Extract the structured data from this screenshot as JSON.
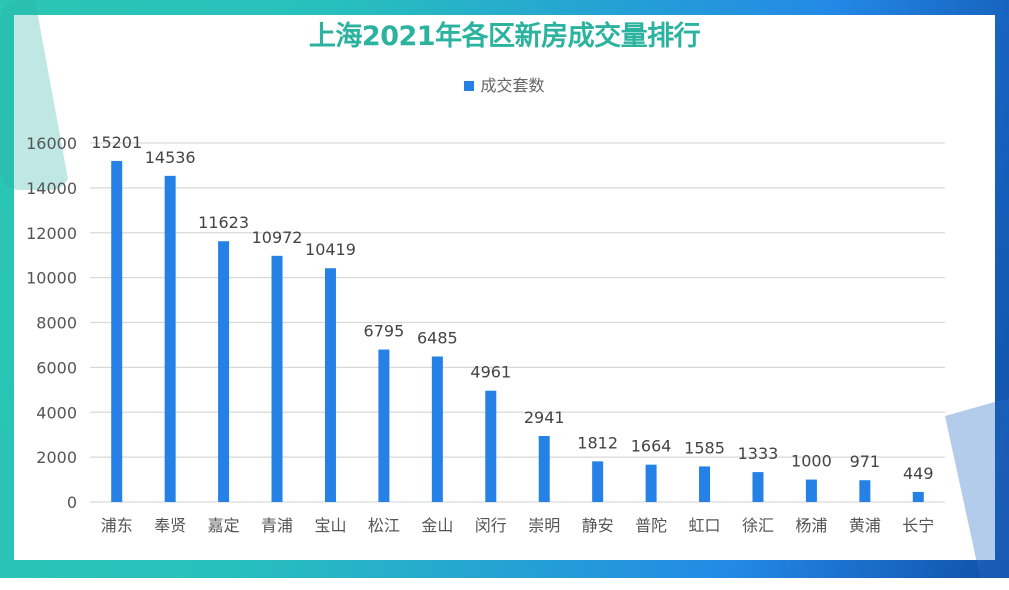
{
  "chart_data": {
    "type": "bar",
    "title": "上海2021年各区新房成交量排行",
    "legend": {
      "position": "top",
      "entries": [
        "成交套数"
      ]
    },
    "categories": [
      "浦东",
      "奉贤",
      "嘉定",
      "青浦",
      "宝山",
      "松江",
      "金山",
      "闵行",
      "崇明",
      "静安",
      "普陀",
      "虹口",
      "徐汇",
      "杨浦",
      "黄浦",
      "长宁"
    ],
    "series": [
      {
        "name": "成交套数",
        "values": [
          15201,
          14536,
          11623,
          10972,
          10419,
          6795,
          6485,
          4961,
          2941,
          1812,
          1664,
          1585,
          1333,
          1000,
          971,
          449
        ],
        "color": "#2581e5"
      }
    ],
    "ylim": [
      0,
      16000
    ],
    "yticks": [
      0,
      2000,
      4000,
      6000,
      8000,
      10000,
      12000,
      14000,
      16000
    ],
    "grid": true,
    "data_labels": true,
    "xlabel": "",
    "ylabel": ""
  }
}
